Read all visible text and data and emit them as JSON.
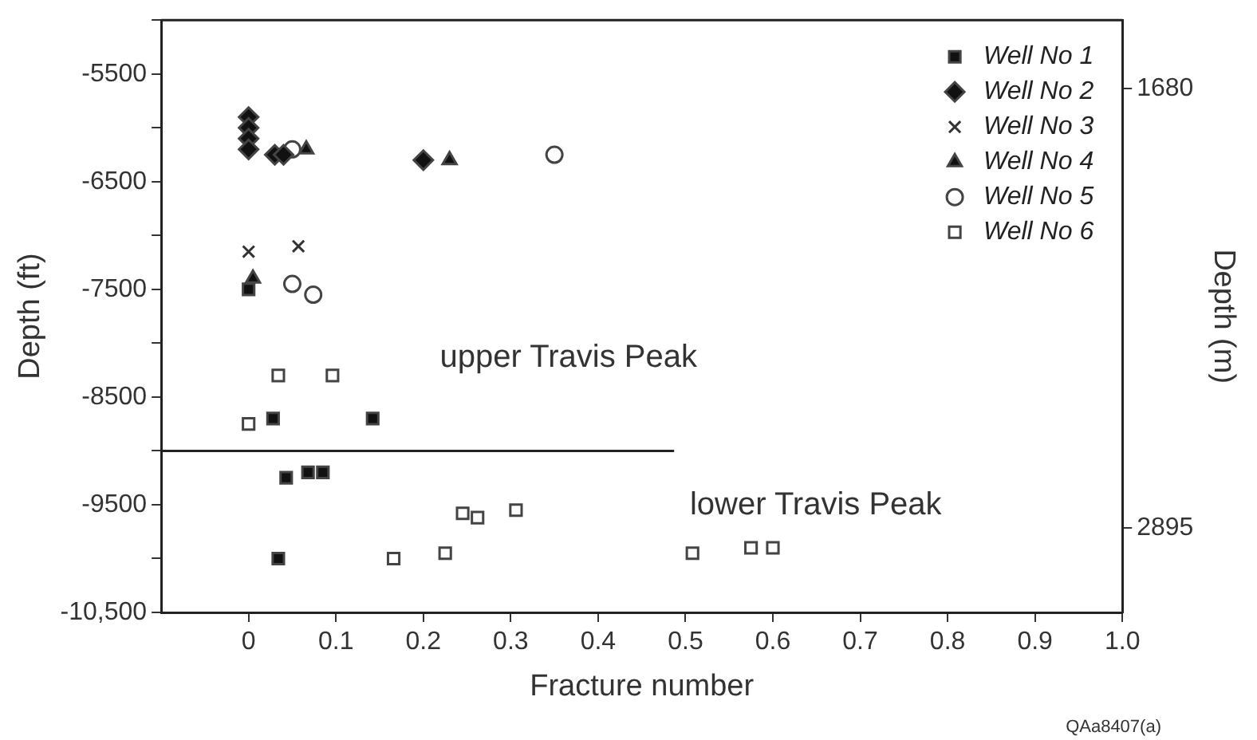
{
  "chart_data": {
    "type": "scatter",
    "xlabel": "Fracture number",
    "ylabel": "Depth (ft)",
    "y2label": "Depth (m)",
    "xlim": [
      -0.1,
      1.0
    ],
    "xticks": [
      0,
      0.1,
      0.2,
      0.3,
      0.4,
      0.5,
      0.6,
      0.7,
      0.8,
      0.9,
      {
        "value": 1,
        "label": "1.0"
      }
    ],
    "ylim": [
      -10500,
      -5000
    ],
    "yticks": [
      {
        "value": -10500,
        "label": "-10,500"
      },
      {
        "value": -10000,
        "label": null
      },
      -9500,
      {
        "value": -9000,
        "label": null
      },
      -8500,
      {
        "value": -8000,
        "label": null
      },
      -7500,
      {
        "value": -7000,
        "label": null
      },
      -6500,
      {
        "value": -6000,
        "label": null
      },
      -5500,
      {
        "value": -5000,
        "label": null
      }
    ],
    "y2lim": [
      3128,
      1490
    ],
    "y2ticks": [
      1680,
      2895
    ],
    "legend": "top right",
    "grid": false,
    "series": [
      {
        "name": "Well No 1",
        "color": "#111111",
        "marker": "square",
        "x": [
          0,
          0.028,
          0.142,
          0.043,
          0.068,
          0.085,
          0.034
        ],
        "values": [
          -7500,
          -8700,
          -8700,
          -9250,
          -9200,
          -9200,
          -10000
        ]
      },
      {
        "name": "Well No 2",
        "color": "#111111",
        "marker": "diamond",
        "x": [
          0,
          0,
          0,
          0,
          0.03,
          0.04,
          0.2
        ],
        "values": [
          -5900,
          -6000,
          -6100,
          -6200,
          -6250,
          -6250,
          -6300
        ]
      },
      {
        "name": "Well No 3",
        "color": "#333333",
        "marker": "cross",
        "x": [
          0,
          0.057
        ],
        "values": [
          -7150,
          -7100
        ]
      },
      {
        "name": "Well No 4",
        "color": "#111111",
        "marker": "triangle",
        "x": [
          0.066,
          0.23,
          0.005
        ],
        "values": [
          -6200,
          -6300,
          -7400
        ]
      },
      {
        "name": "Well No 5",
        "color": "#ffffff",
        "marker": "circle",
        "x": [
          0.35,
          0.05,
          0.074,
          0.05
        ],
        "values": [
          -6250,
          -7450,
          -7550,
          -6200
        ]
      },
      {
        "name": "Well No 6",
        "color": "#ffffff",
        "marker": "square",
        "x": [
          0.034,
          0.096,
          0,
          0.166,
          0.225,
          0.245,
          0.262,
          0.306,
          0.508,
          0.575,
          0.6
        ],
        "values": [
          -8300,
          -8300,
          -8750,
          -10000,
          -9950,
          -9580,
          -9620,
          -9550,
          -9950,
          -9900,
          -9900
        ]
      },
      {
        "type": "line",
        "color": "#222222",
        "marker": "none",
        "x": [
          -0.1,
          0.487
        ],
        "values": [
          -9000,
          -9000
        ]
      }
    ],
    "annotations": [
      "upper Travis Peak",
      "lower Travis Peak",
      "QAa8407(a)"
    ]
  }
}
